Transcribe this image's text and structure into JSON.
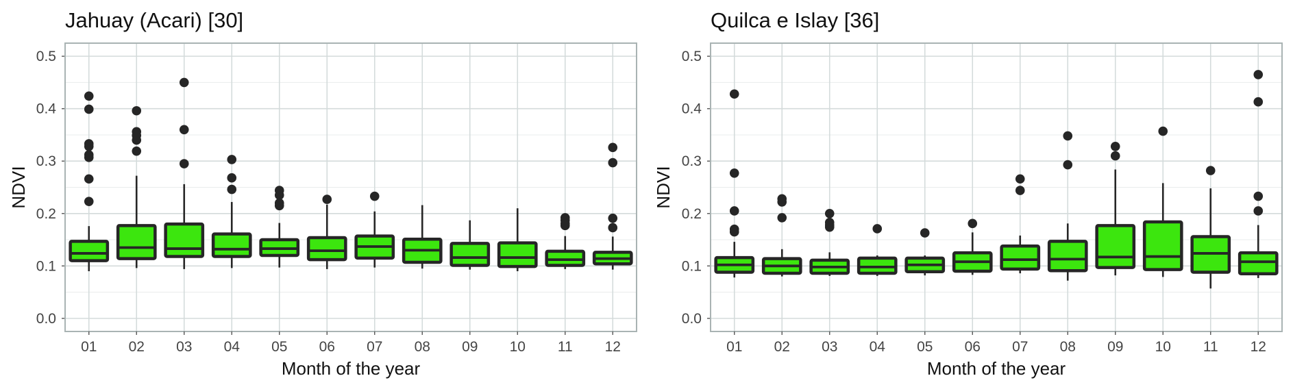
{
  "chart_data": [
    {
      "type": "box",
      "title": "Jahuay (Acari) [30]",
      "xlabel": "Month of the year",
      "ylabel": "NDVI",
      "ylim": [
        -0.025,
        0.525
      ],
      "yticks": [
        "0.0",
        "0.1",
        "0.2",
        "0.3",
        "0.4",
        "0.5"
      ],
      "grid": true,
      "fill_color": "#3ce60e",
      "stroke_color": "#262626",
      "categories": [
        "01",
        "02",
        "03",
        "04",
        "05",
        "06",
        "07",
        "08",
        "09",
        "10",
        "11",
        "12"
      ],
      "boxes": [
        {
          "lower_whisker": 0.09,
          "q1": 0.11,
          "median": 0.124,
          "q3": 0.147,
          "upper_whisker": 0.176,
          "outliers": [
            0.424,
            0.399,
            0.333,
            0.328,
            0.312,
            0.307,
            0.266,
            0.223
          ]
        },
        {
          "lower_whisker": 0.096,
          "q1": 0.114,
          "median": 0.135,
          "q3": 0.177,
          "upper_whisker": 0.272,
          "outliers": [
            0.396,
            0.356,
            0.349,
            0.34,
            0.319
          ]
        },
        {
          "lower_whisker": 0.094,
          "q1": 0.118,
          "median": 0.133,
          "q3": 0.18,
          "upper_whisker": 0.256,
          "outliers": [
            0.45,
            0.36,
            0.295
          ]
        },
        {
          "lower_whisker": 0.096,
          "q1": 0.118,
          "median": 0.132,
          "q3": 0.161,
          "upper_whisker": 0.222,
          "outliers": [
            0.303,
            0.268,
            0.246
          ]
        },
        {
          "lower_whisker": 0.097,
          "q1": 0.12,
          "median": 0.133,
          "q3": 0.15,
          "upper_whisker": 0.182,
          "outliers": [
            0.244,
            0.235,
            0.22,
            0.215
          ]
        },
        {
          "lower_whisker": 0.094,
          "q1": 0.112,
          "median": 0.129,
          "q3": 0.154,
          "upper_whisker": 0.217,
          "outliers": [
            0.227
          ]
        },
        {
          "lower_whisker": 0.097,
          "q1": 0.115,
          "median": 0.137,
          "q3": 0.157,
          "upper_whisker": 0.204,
          "outliers": [
            0.233
          ]
        },
        {
          "lower_whisker": 0.095,
          "q1": 0.107,
          "median": 0.13,
          "q3": 0.151,
          "upper_whisker": 0.216,
          "outliers": []
        },
        {
          "lower_whisker": 0.093,
          "q1": 0.101,
          "median": 0.116,
          "q3": 0.143,
          "upper_whisker": 0.187,
          "outliers": []
        },
        {
          "lower_whisker": 0.09,
          "q1": 0.099,
          "median": 0.116,
          "q3": 0.144,
          "upper_whisker": 0.21,
          "outliers": []
        },
        {
          "lower_whisker": 0.094,
          "q1": 0.101,
          "median": 0.112,
          "q3": 0.128,
          "upper_whisker": 0.157,
          "outliers": [
            0.192,
            0.187,
            0.181,
            0.177
          ]
        },
        {
          "lower_whisker": 0.093,
          "q1": 0.104,
          "median": 0.114,
          "q3": 0.126,
          "upper_whisker": 0.156,
          "outliers": [
            0.326,
            0.297,
            0.191,
            0.173
          ]
        }
      ]
    },
    {
      "type": "box",
      "title": "Quilca e Islay [36]",
      "xlabel": "Month of the year",
      "ylabel": "NDVI",
      "ylim": [
        -0.025,
        0.525
      ],
      "yticks": [
        "0.0",
        "0.1",
        "0.2",
        "0.3",
        "0.4",
        "0.5"
      ],
      "grid": true,
      "fill_color": "#3ce60e",
      "stroke_color": "#262626",
      "categories": [
        "01",
        "02",
        "03",
        "04",
        "05",
        "06",
        "07",
        "08",
        "09",
        "10",
        "11",
        "12"
      ],
      "boxes": [
        {
          "lower_whisker": 0.078,
          "q1": 0.088,
          "median": 0.102,
          "q3": 0.116,
          "upper_whisker": 0.146,
          "outliers": [
            0.428,
            0.277,
            0.205,
            0.17,
            0.165
          ]
        },
        {
          "lower_whisker": 0.08,
          "q1": 0.086,
          "median": 0.1,
          "q3": 0.114,
          "upper_whisker": 0.132,
          "outliers": [
            0.228,
            0.222,
            0.192
          ]
        },
        {
          "lower_whisker": 0.081,
          "q1": 0.086,
          "median": 0.098,
          "q3": 0.111,
          "upper_whisker": 0.126,
          "outliers": [
            0.2,
            0.183,
            0.178,
            0.174
          ]
        },
        {
          "lower_whisker": 0.081,
          "q1": 0.086,
          "median": 0.098,
          "q3": 0.115,
          "upper_whisker": 0.12,
          "outliers": [
            0.171
          ]
        },
        {
          "lower_whisker": 0.082,
          "q1": 0.089,
          "median": 0.102,
          "q3": 0.115,
          "upper_whisker": 0.12,
          "outliers": [
            0.163
          ]
        },
        {
          "lower_whisker": 0.083,
          "q1": 0.09,
          "median": 0.108,
          "q3": 0.125,
          "upper_whisker": 0.164,
          "outliers": [
            0.181
          ]
        },
        {
          "lower_whisker": 0.086,
          "q1": 0.094,
          "median": 0.112,
          "q3": 0.138,
          "upper_whisker": 0.158,
          "outliers": [
            0.266,
            0.244
          ]
        },
        {
          "lower_whisker": 0.072,
          "q1": 0.091,
          "median": 0.113,
          "q3": 0.147,
          "upper_whisker": 0.181,
          "outliers": [
            0.348,
            0.293
          ]
        },
        {
          "lower_whisker": 0.082,
          "q1": 0.097,
          "median": 0.117,
          "q3": 0.177,
          "upper_whisker": 0.284,
          "outliers": [
            0.328,
            0.31
          ]
        },
        {
          "lower_whisker": 0.079,
          "q1": 0.093,
          "median": 0.118,
          "q3": 0.184,
          "upper_whisker": 0.258,
          "outliers": [
            0.357
          ]
        },
        {
          "lower_whisker": 0.057,
          "q1": 0.088,
          "median": 0.124,
          "q3": 0.156,
          "upper_whisker": 0.248,
          "outliers": [
            0.282
          ]
        },
        {
          "lower_whisker": 0.077,
          "q1": 0.085,
          "median": 0.108,
          "q3": 0.125,
          "upper_whisker": 0.178,
          "outliers": [
            0.465,
            0.413,
            0.233,
            0.205
          ]
        }
      ]
    }
  ]
}
